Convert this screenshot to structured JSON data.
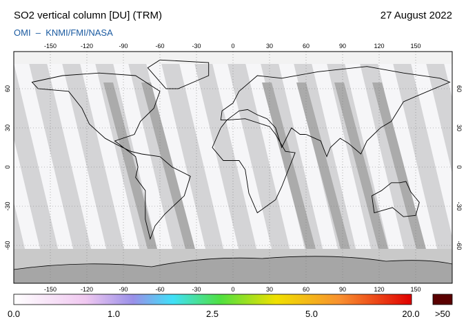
{
  "header": {
    "title": "SO2 vertical column [DU] (TRM)",
    "date": "27 August 2022",
    "credit": "OMI  –  KNMI/FMI/NASA"
  },
  "map": {
    "lon_ticks": [
      -150,
      -120,
      -90,
      -60,
      -30,
      0,
      30,
      60,
      90,
      120,
      150
    ],
    "lat_ticks": [
      60,
      30,
      0,
      -30,
      -60
    ]
  },
  "colorbar": {
    "labels": [
      "0.0",
      "1.0",
      "2.5",
      "5.0",
      "20.0"
    ],
    "over_label": ">50"
  }
}
